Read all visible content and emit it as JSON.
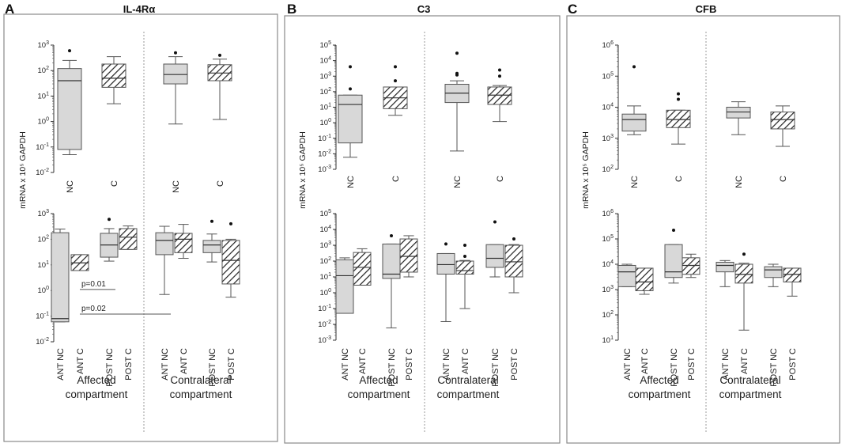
{
  "figure": {
    "y_axis_label": "mRNA x 10⁵ GAPDH",
    "group_labels": {
      "affected": [
        "Affected",
        "compartment"
      ],
      "contralateral": [
        "Contralateral",
        "compartment"
      ]
    },
    "colors": {
      "gray_fill": "#d8d8d8",
      "stroke": "#555555",
      "frame": "#8a8a8a",
      "divider": "#9a9a9a"
    }
  },
  "chart_data": [
    {
      "id": "A",
      "letter": "A",
      "title": "IL-4Rα",
      "type": "box",
      "panels": [
        {
          "position": "top",
          "ylim_log10": [
            -2,
            3
          ],
          "categories": [
            "NC",
            "C",
            "NC",
            "C"
          ],
          "groups": [
            "affected",
            "affected",
            "contralateral",
            "contralateral"
          ],
          "patterns": [
            "gray",
            "hatch",
            "gray",
            "hatch"
          ],
          "boxes": [
            {
              "min": 0.05,
              "q1": 0.08,
              "median": 40,
              "q3": 120,
              "max": 250,
              "outliers": [
                600
              ]
            },
            {
              "min": 5,
              "q1": 22,
              "median": 50,
              "q3": 180,
              "max": 350,
              "outliers": []
            },
            {
              "min": 0.8,
              "q1": 30,
              "median": 70,
              "q3": 180,
              "max": 350,
              "outliers": [
                500
              ]
            },
            {
              "min": 1.2,
              "q1": 40,
              "median": 80,
              "q3": 170,
              "max": 280,
              "outliers": [
                400
              ]
            }
          ]
        },
        {
          "position": "bottom",
          "ylim_log10": [
            -2,
            3
          ],
          "categories": [
            "ANT NC",
            "ANT C",
            "POST NC",
            "POST C",
            "ANT NC",
            "ANT C",
            "POST NC",
            "POST C"
          ],
          "groups": [
            "affected",
            "affected",
            "affected",
            "affected",
            "contralateral",
            "contralateral",
            "contralateral",
            "contralateral"
          ],
          "patterns": [
            "gray",
            "hatch",
            "gray",
            "hatch",
            "gray",
            "hatch",
            "gray",
            "hatch"
          ],
          "boxes": [
            {
              "min": 0.06,
              "q1": 0.06,
              "median": 0.08,
              "q3": 180,
              "max": 250,
              "outliers": []
            },
            {
              "min": 6,
              "q1": 6,
              "median": 12,
              "q3": 25,
              "max": 25,
              "outliers": []
            },
            {
              "min": 14,
              "q1": 20,
              "median": 60,
              "q3": 170,
              "max": 260,
              "outliers": [
                600
              ]
            },
            {
              "min": 40,
              "q1": 40,
              "median": 120,
              "q3": 260,
              "max": 330,
              "outliers": []
            },
            {
              "min": 0.7,
              "q1": 25,
              "median": 90,
              "q3": 180,
              "max": 320,
              "outliers": []
            },
            {
              "min": 18,
              "q1": 30,
              "median": 100,
              "q3": 170,
              "max": 380,
              "outliers": []
            },
            {
              "min": 13,
              "q1": 30,
              "median": 60,
              "q3": 90,
              "max": 160,
              "outliers": [
                500
              ]
            },
            {
              "min": 0.55,
              "q1": 1.8,
              "median": 15,
              "q3": 90,
              "max": 100,
              "outliers": [
                400
              ]
            }
          ],
          "annotations": [
            {
              "text": "p=0.01",
              "from_cat": 1,
              "to_cat": 2,
              "y": 1.1
            },
            {
              "text": "p=0.02",
              "from_cat": 1,
              "to_cat": 4,
              "y": 0.12
            }
          ]
        }
      ]
    },
    {
      "id": "B",
      "letter": "B",
      "title": "C3",
      "type": "box",
      "panels": [
        {
          "position": "top",
          "ylim_log10": [
            -3,
            5
          ],
          "categories": [
            "NC",
            "C",
            "NC",
            "C"
          ],
          "groups": [
            "affected",
            "affected",
            "contralateral",
            "contralateral"
          ],
          "patterns": [
            "gray",
            "hatch",
            "gray",
            "hatch"
          ],
          "boxes": [
            {
              "min": 0.006,
              "q1": 0.05,
              "median": 15,
              "q3": 60,
              "max": 60,
              "outliers": [
                150,
                4000
              ]
            },
            {
              "min": 3,
              "q1": 8,
              "median": 40,
              "q3": 200,
              "max": 200,
              "outliers": [
                500,
                4000
              ]
            },
            {
              "min": 0.015,
              "q1": 20,
              "median": 80,
              "q3": 300,
              "max": 500,
              "outliers": [
                1200,
                1500,
                30000
              ]
            },
            {
              "min": 1.2,
              "q1": 15,
              "median": 60,
              "q3": 200,
              "max": 250,
              "outliers": [
                1000,
                2500
              ]
            }
          ]
        },
        {
          "position": "bottom",
          "ylim_log10": [
            -3,
            5
          ],
          "categories": [
            "ANT NC",
            "ANT C",
            "POST NC",
            "POST C",
            "ANT NC",
            "ANT C",
            "POST NC",
            "POST C"
          ],
          "groups": [
            "affected",
            "affected",
            "affected",
            "affected",
            "contralateral",
            "contralateral",
            "contralateral",
            "contralateral"
          ],
          "patterns": [
            "gray",
            "hatch",
            "gray",
            "hatch",
            "gray",
            "hatch",
            "gray",
            "hatch"
          ],
          "boxes": [
            {
              "min": 0.05,
              "q1": 0.05,
              "median": 12,
              "q3": 120,
              "max": 160,
              "outliers": []
            },
            {
              "min": 3,
              "q1": 3,
              "median": 40,
              "q3": 350,
              "max": 600,
              "outliers": []
            },
            {
              "min": 0.006,
              "q1": 8,
              "median": 15,
              "q3": 1200,
              "max": 1200,
              "outliers": [
                4000
              ]
            },
            {
              "min": 10,
              "q1": 20,
              "median": 200,
              "q3": 2500,
              "max": 4000,
              "outliers": []
            },
            {
              "min": 0.015,
              "q1": 15,
              "median": 60,
              "q3": 300,
              "max": 300,
              "outliers": [
                1200
              ]
            },
            {
              "min": 0.1,
              "q1": 15,
              "median": 25,
              "q3": 100,
              "max": 110,
              "outliers": [
                200,
                1000
              ]
            },
            {
              "min": 10,
              "q1": 40,
              "median": 150,
              "q3": 1100,
              "max": 1100,
              "outliers": [
                30000
              ]
            },
            {
              "min": 1,
              "q1": 10,
              "median": 90,
              "q3": 1000,
              "max": 1100,
              "outliers": [
                2500
              ]
            }
          ],
          "annotations": []
        }
      ]
    },
    {
      "id": "C",
      "letter": "C",
      "title": "CFB",
      "type": "box",
      "panels": [
        {
          "position": "top",
          "ylim_log10": [
            2,
            6
          ],
          "categories": [
            "NC",
            "C",
            "NC",
            "C"
          ],
          "groups": [
            "affected",
            "affected",
            "contralateral",
            "contralateral"
          ],
          "patterns": [
            "gray",
            "hatch",
            "gray",
            "hatch"
          ],
          "boxes": [
            {
              "min": 1300,
              "q1": 1700,
              "median": 4000,
              "q3": 6000,
              "max": 11000,
              "outliers": [
                200000
              ]
            },
            {
              "min": 650,
              "q1": 2200,
              "median": 4000,
              "q3": 8000,
              "max": 8000,
              "outliers": [
                18000,
                27000
              ]
            },
            {
              "min": 1300,
              "q1": 4500,
              "median": 7000,
              "q3": 10000,
              "max": 15000,
              "outliers": []
            },
            {
              "min": 550,
              "q1": 2000,
              "median": 4000,
              "q3": 7000,
              "max": 11000,
              "outliers": []
            }
          ]
        },
        {
          "position": "bottom",
          "ylim_log10": [
            1,
            6
          ],
          "categories": [
            "ANT NC",
            "ANT C",
            "POST NC",
            "POST C",
            "ANT NC",
            "ANT C",
            "POST NC",
            "POST C"
          ],
          "groups": [
            "affected",
            "affected",
            "affected",
            "affected",
            "contralateral",
            "contralateral",
            "contralateral",
            "contralateral"
          ],
          "patterns": [
            "gray",
            "hatch",
            "gray",
            "hatch",
            "gray",
            "hatch",
            "gray",
            "hatch"
          ],
          "boxes": [
            {
              "min": 1300,
              "q1": 1300,
              "median": 5000,
              "q3": 9000,
              "max": 10000,
              "outliers": []
            },
            {
              "min": 650,
              "q1": 900,
              "median": 2000,
              "q3": 7000,
              "max": 7000,
              "outliers": []
            },
            {
              "min": 1800,
              "q1": 3000,
              "median": 5000,
              "q3": 60000,
              "max": 60000,
              "outliers": [
                220000
              ]
            },
            {
              "min": 3000,
              "q1": 4000,
              "median": 9000,
              "q3": 18000,
              "max": 25000,
              "outliers": []
            },
            {
              "min": 1300,
              "q1": 5000,
              "median": 9000,
              "q3": 12000,
              "max": 14000,
              "outliers": []
            },
            {
              "min": 25,
              "q1": 1800,
              "median": 4000,
              "q3": 10000,
              "max": 11000,
              "outliers": [
                25000
              ]
            },
            {
              "min": 1300,
              "q1": 3000,
              "median": 6000,
              "q3": 8000,
              "max": 10000,
              "outliers": []
            },
            {
              "min": 550,
              "q1": 2000,
              "median": 4000,
              "q3": 7000,
              "max": 7000,
              "outliers": []
            }
          ],
          "annotations": []
        }
      ]
    }
  ]
}
